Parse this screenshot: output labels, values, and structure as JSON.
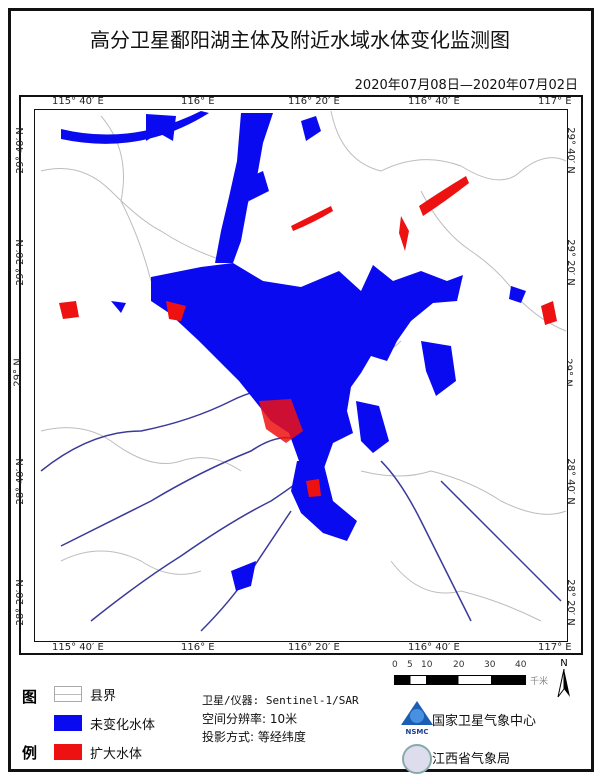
{
  "title": "高分卫星鄱阳湖主体及附近水域水体变化监测图",
  "date_range": "2020年07月08日—2020年07月02日",
  "axes": {
    "top": [
      "115° 40′ E",
      "116° E",
      "116° 20′ E",
      "116° 40′ E",
      "117° E"
    ],
    "bottom": [
      "115° 40′ E",
      "116° E",
      "116° 20′ E",
      "116° 40′ E",
      "117° E"
    ],
    "left": [
      "29° 40′ N",
      "29° 20′ N",
      "29° N",
      "28° 40′ N",
      "28° 20′ N"
    ],
    "right": [
      "29° 40′ N",
      "29° 20′ N",
      "29° N",
      "28° 40′ N",
      "28° 20′ N"
    ]
  },
  "colors": {
    "unchanged_water": "#0a0af0",
    "expanded_water": "#ee1111",
    "county_border": "#b8b8b8"
  },
  "legend": {
    "heading_top": "图",
    "heading_bottom": "例",
    "items": [
      {
        "label": "县界",
        "color": "#ffffff"
      },
      {
        "label": "未变化水体",
        "color": "#0a0af0"
      },
      {
        "label": "扩大水体",
        "color": "#ee1111"
      }
    ]
  },
  "info": {
    "satellite": "卫星/仪器: Sentinel-1/SAR",
    "resolution": "空间分辨率: 10米",
    "projection": "投影方式:  等经纬度"
  },
  "scale_bar": {
    "ticks": [
      "0",
      "5",
      "10",
      "20",
      "30",
      "40"
    ],
    "unit": "千米"
  },
  "north_arrow": "N",
  "organizations": [
    {
      "name": "国家卫星气象中心",
      "logo_text": "NSMC"
    },
    {
      "name": "江西省气象局"
    }
  ]
}
